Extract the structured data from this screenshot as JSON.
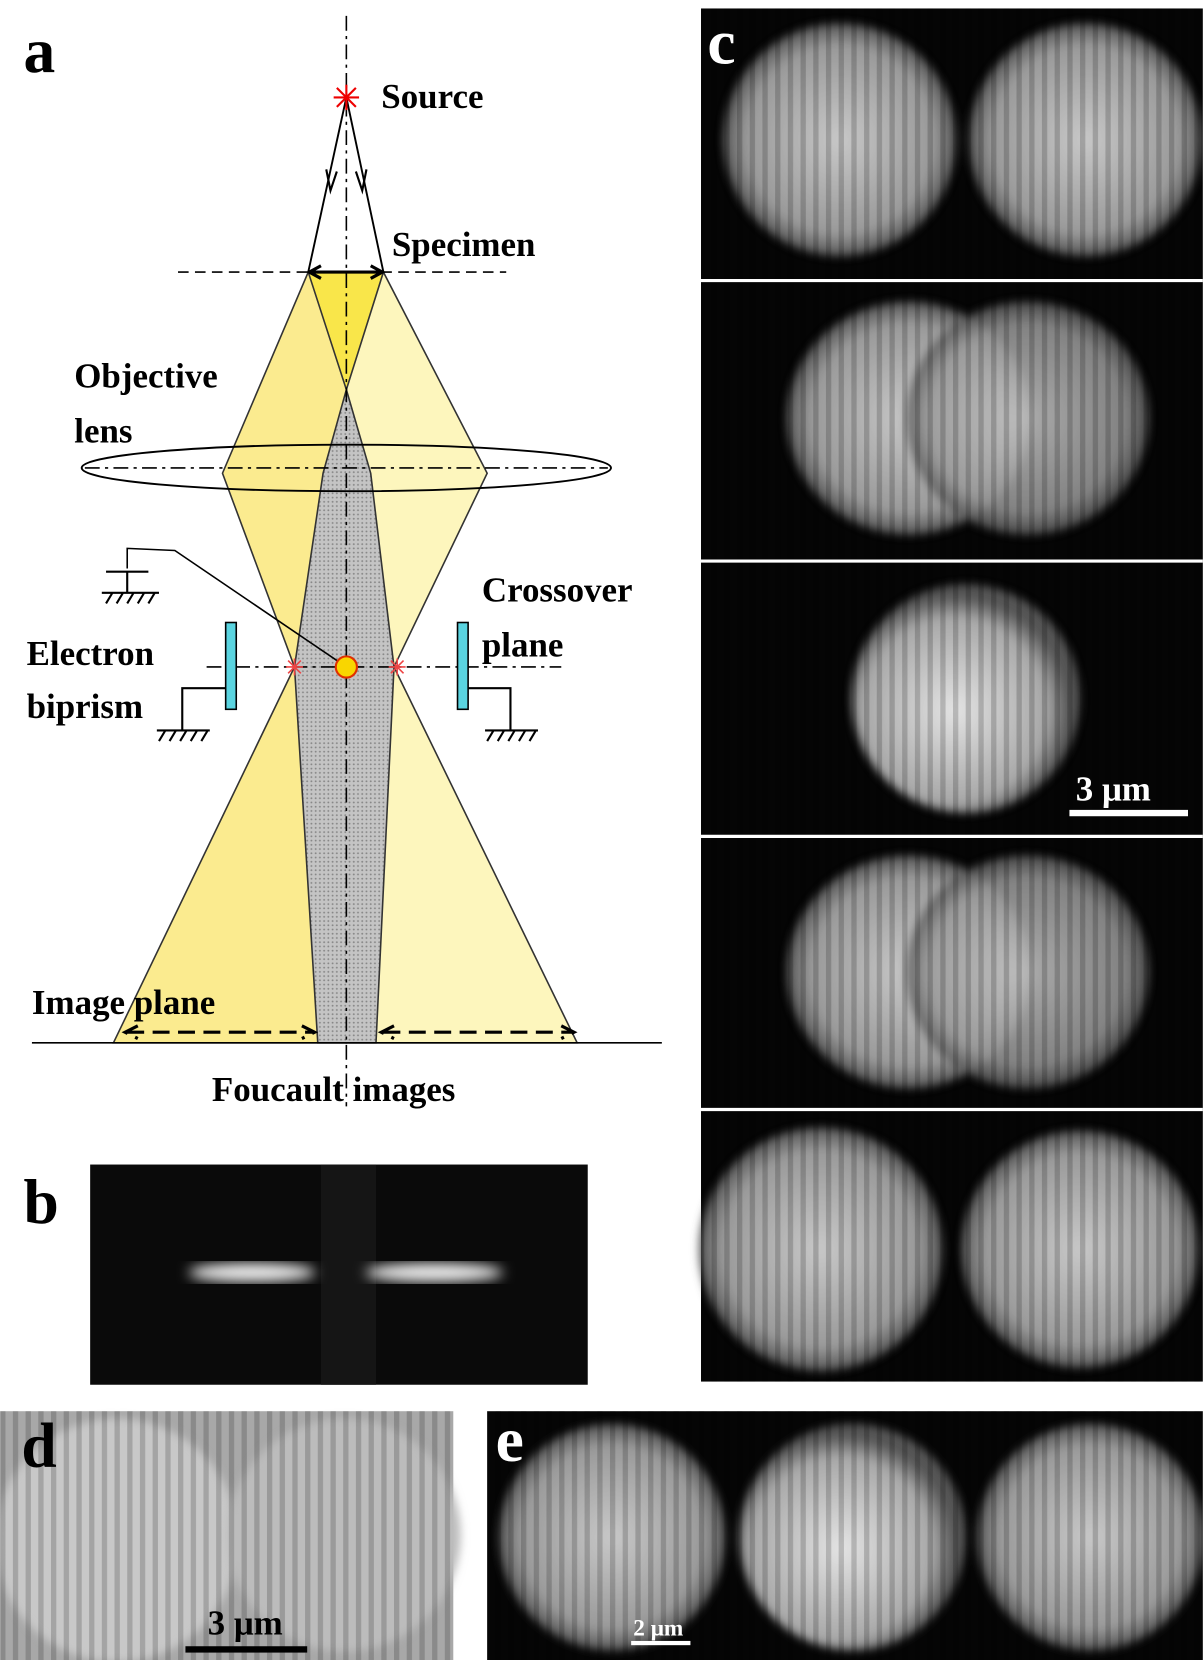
{
  "panels": {
    "a": {
      "label": "a",
      "source": "Source",
      "specimen": "Specimen",
      "objective_lens": [
        "Objective",
        "lens"
      ],
      "crossover_plane": [
        "Crossover",
        "plane"
      ],
      "electron_biprism": [
        "Electron",
        "biprism"
      ],
      "image_plane": "Image plane",
      "foucault_images": "Foucault images"
    },
    "b": {
      "label": "b"
    },
    "c": {
      "label": "c",
      "scale_bar": "3 μm"
    },
    "d": {
      "label": "d",
      "scale_bar": "3 μm"
    },
    "e": {
      "label": "e",
      "scale_bar": "2 μm"
    }
  }
}
